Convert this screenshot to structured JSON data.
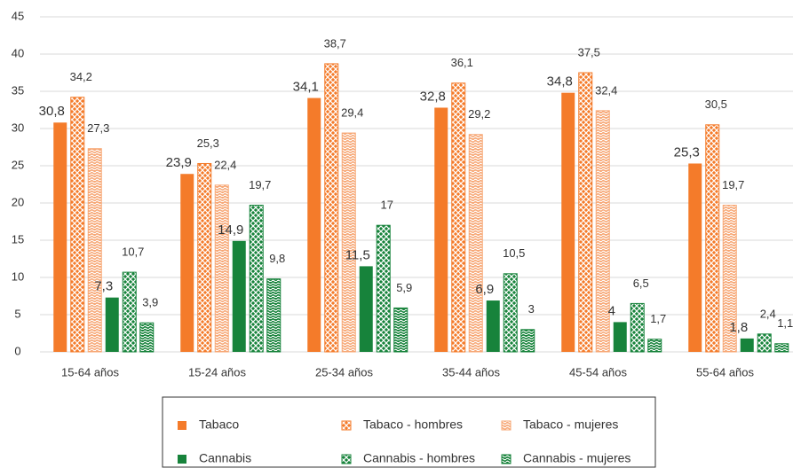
{
  "chart_data": {
    "type": "bar",
    "categories": [
      "15-64 años",
      "15-24 años",
      "25-34 años",
      "35-44 años",
      "45-54 años",
      "55-64 años"
    ],
    "series": [
      {
        "name": "Tabaco",
        "color": "#f47b2a",
        "pattern": "solid",
        "values": [
          30.8,
          23.9,
          34.1,
          32.8,
          34.8,
          25.3
        ],
        "value_labels": [
          "30,8",
          "23,9",
          "34,1",
          "32,8",
          "34,8",
          "25,3"
        ]
      },
      {
        "name": "Tabaco - hombres",
        "color": "#f47b2a",
        "pattern": "crosshatch",
        "values": [
          34.2,
          25.3,
          38.7,
          36.1,
          37.5,
          30.5
        ],
        "value_labels": [
          "34,2",
          "25,3",
          "38,7",
          "36,1",
          "37,5",
          "30,5"
        ]
      },
      {
        "name": "Tabaco - mujeres",
        "color": "#f7a877",
        "pattern": "dashes",
        "values": [
          27.3,
          22.4,
          29.4,
          29.2,
          32.4,
          19.7
        ],
        "value_labels": [
          "27,3",
          "22,4",
          "29,4",
          "29,2",
          "32,4",
          "19,7"
        ]
      },
      {
        "name": "Cannabis",
        "color": "#17833b",
        "pattern": "solid",
        "values": [
          7.3,
          14.9,
          11.5,
          6.9,
          4,
          1.8
        ],
        "value_labels": [
          "7,3",
          "14,9",
          "11,5",
          "6,9",
          "4",
          "1,8"
        ]
      },
      {
        "name": "Cannabis - hombres",
        "color": "#17833b",
        "pattern": "crosshatch",
        "values": [
          10.7,
          19.7,
          17,
          10.5,
          6.5,
          2.4
        ],
        "value_labels": [
          "10,7",
          "19,7",
          "17",
          "10,5",
          "6,5",
          "2,4"
        ]
      },
      {
        "name": "Cannabis - mujeres",
        "color": "#17833b",
        "pattern": "dashes",
        "values": [
          3.9,
          9.8,
          5.9,
          3,
          1.7,
          1.1
        ],
        "value_labels": [
          "3,9",
          "9,8",
          "5,9",
          "3",
          "1,7",
          "1,1"
        ]
      }
    ],
    "ylim": [
      0,
      45
    ],
    "yticks": [
      0,
      5,
      10,
      15,
      20,
      25,
      30,
      35,
      40,
      45
    ],
    "grid": true,
    "legend": "bottom"
  }
}
